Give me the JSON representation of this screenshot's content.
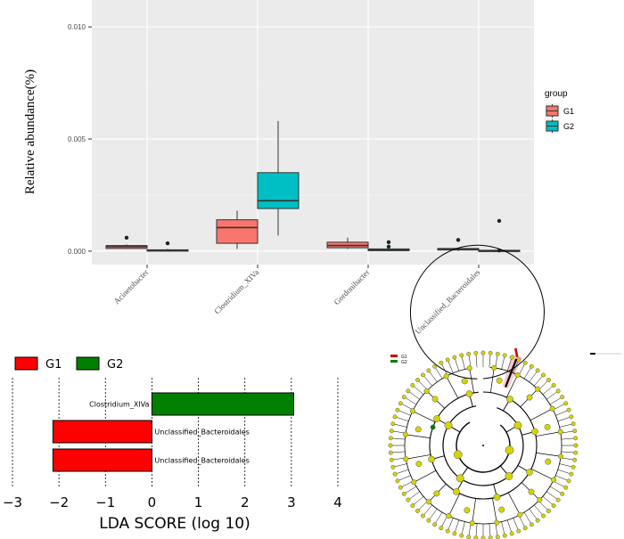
{
  "chart_data": [
    {
      "type": "box",
      "ylabel": "Relative abundance(%)",
      "ylim": [
        -0.0006,
        0.0112
      ],
      "y_ticks": [
        "0.000",
        "0.005",
        "0.010"
      ],
      "y_tick_values": [
        0.0,
        0.005,
        0.01
      ],
      "categories": [
        "Acinetobacter",
        "Clostridium_XIVa",
        "Gordonibacter",
        "Unclassified_Bacteroidales"
      ],
      "legend": {
        "title": "group",
        "entries": [
          "G1",
          "G2"
        ]
      },
      "colors": {
        "G1": "#f8766d",
        "G2": "#00bfc4",
        "panel": "#ebebeb",
        "grid": "#ffffff"
      },
      "series": [
        {
          "name": "G1",
          "boxes": [
            {
              "min": 0.0001,
              "q1": 0.00012,
              "median": 0.0002,
              "q3": 0.00025,
              "max": 0.0003,
              "outliers": [
                0.0006
              ]
            },
            {
              "min": 0.0001,
              "q1": 0.00035,
              "median": 0.00105,
              "q3": 0.0014,
              "max": 0.0018,
              "outliers": []
            },
            {
              "min": 0.0001,
              "q1": 0.00015,
              "median": 0.00025,
              "q3": 0.0004,
              "max": 0.0006,
              "outliers": []
            },
            {
              "min": 0.0,
              "q1": 5e-05,
              "median": 0.0001,
              "q3": 0.00012,
              "max": 0.00015,
              "outliers": [
                0.0005
              ]
            }
          ]
        },
        {
          "name": "G2",
          "boxes": [
            {
              "min": 0.0,
              "q1": 2e-05,
              "median": 4e-05,
              "q3": 6e-05,
              "max": 0.0001,
              "outliers": [
                0.00035
              ]
            },
            {
              "min": 0.0007,
              "q1": 0.0019,
              "median": 0.00225,
              "q3": 0.0035,
              "max": 0.0058,
              "outliers": []
            },
            {
              "min": 0.0,
              "q1": 2e-05,
              "median": 5e-05,
              "q3": 0.0001,
              "max": 0.00015,
              "outliers": [
                0.0004,
                0.0002
              ]
            },
            {
              "min": 0.0,
              "q1": 0.0,
              "median": 2e-05,
              "q3": 4e-05,
              "max": 6e-05,
              "outliers": [
                0.00135,
                3e-05
              ]
            }
          ]
        }
      ]
    },
    {
      "type": "bar",
      "orientation": "horizontal",
      "xlabel": "LDA SCORE (log 10)",
      "xlim": [
        -3,
        4
      ],
      "x_ticks": [
        "−3",
        "−2",
        "−1",
        "0",
        "1",
        "2",
        "3",
        "4"
      ],
      "x_tick_values": [
        -3,
        -2,
        -1,
        0,
        1,
        2,
        3,
        4
      ],
      "legend": [
        {
          "name": "G1",
          "color": "#ff0000"
        },
        {
          "name": "G2",
          "color": "#007f00"
        }
      ],
      "bars": [
        {
          "label": "Clostridium_XIVa",
          "value": 3.05,
          "group": "G2"
        },
        {
          "label": "Unclassified_Bacteroidales",
          "value": -2.13,
          "group": "G1"
        },
        {
          "label": "Unclassified_Bacteroidales",
          "value": -2.13,
          "group": "G1"
        }
      ]
    },
    {
      "type": "cladogram",
      "legend": [
        {
          "name": "G1",
          "color": "#cc0000"
        },
        {
          "name": "G2",
          "color": "#007f00"
        }
      ],
      "node_color": "#d4d400",
      "highlight_color": "#f4b6b6"
    }
  ]
}
